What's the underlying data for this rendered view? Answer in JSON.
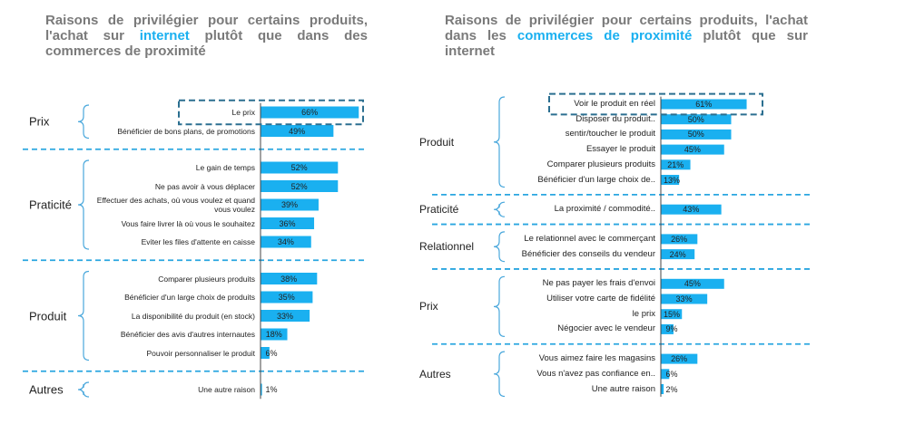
{
  "chart_data": [
    {
      "type": "bar",
      "color": "#1ab0f0",
      "title_parts": [
        "Raisons de privilégier pour certains produits, l'achat sur ",
        "internet",
        " plutôt que dans des commerces de proximité"
      ],
      "groups": [
        {
          "name": "Prix",
          "categories": [
            "Le prix",
            "Bénéficier de bons plans, de promotions"
          ],
          "values": [
            66,
            49
          ],
          "value_labels": [
            "66%",
            "49%"
          ]
        },
        {
          "name": "Praticité",
          "categories": [
            "Le gain de temps",
            "Ne pas avoir à vous déplacer",
            "Effectuer des achats, où vous voulez et quand vous voulez",
            "Vous faire livrer là où vous le souhaitez",
            "Eviter les files d'attente en caisse"
          ],
          "values": [
            52,
            52,
            39,
            36,
            34
          ],
          "value_labels": [
            "52%",
            "52%",
            "39%",
            "36%",
            "34%"
          ]
        },
        {
          "name": "Produit",
          "categories": [
            "Comparer plusieurs produits",
            "Bénéficier d'un large choix de produits",
            "La disponibilité du produit (en stock)",
            "Bénéficier des avis d'autres internautes",
            "Pouvoir personnaliser le produit"
          ],
          "values": [
            38,
            35,
            33,
            18,
            6
          ],
          "value_labels": [
            "38%",
            "35%",
            "33%",
            "18%",
            "6%"
          ]
        },
        {
          "name": "Autres",
          "categories": [
            "Une autre raison"
          ],
          "values": [
            1
          ],
          "value_labels": [
            "1%"
          ]
        }
      ]
    },
    {
      "type": "bar",
      "color": "#1ab0f0",
      "title_parts": [
        "Raisons de privilégier pour certains produits, l'achat dans les ",
        "commerces de proximité",
        " plutôt que sur internet"
      ],
      "groups": [
        {
          "name": "Produit",
          "categories": [
            "Voir le produit en réel",
            "Disposer du produit..",
            "sentir/toucher le produit",
            "Essayer le produit",
            "Comparer plusieurs produits",
            "Bénéficier d'un large choix de.."
          ],
          "values": [
            61,
            50,
            50,
            45,
            21,
            13
          ],
          "value_labels": [
            "61%",
            "50%",
            "50%",
            "45%",
            "21%",
            "13%"
          ]
        },
        {
          "name": "Praticité",
          "categories": [
            "La proximité / commodité.."
          ],
          "values": [
            43
          ],
          "value_labels": [
            "43%"
          ]
        },
        {
          "name": "Relationnel",
          "categories": [
            "Le relationnel avec le commerçant",
            "Bénéficier des conseils du vendeur"
          ],
          "values": [
            26,
            24
          ],
          "value_labels": [
            "26%",
            "24%"
          ]
        },
        {
          "name": "Prix",
          "categories": [
            "Ne pas payer les frais d'envoi",
            "Utiliser votre carte de fidélité",
            "le prix",
            "Négocier avec le vendeur"
          ],
          "values": [
            45,
            33,
            15,
            9
          ],
          "value_labels": [
            "45%",
            "33%",
            "15%",
            "9%"
          ]
        },
        {
          "name": "Autres",
          "categories": [
            "Vous aimez faire les magasins",
            "Vous n'avez pas confiance en..",
            "Une autre raison"
          ],
          "values": [
            26,
            6,
            2
          ],
          "value_labels": [
            "26%",
            "6%",
            "2%"
          ]
        }
      ]
    }
  ]
}
